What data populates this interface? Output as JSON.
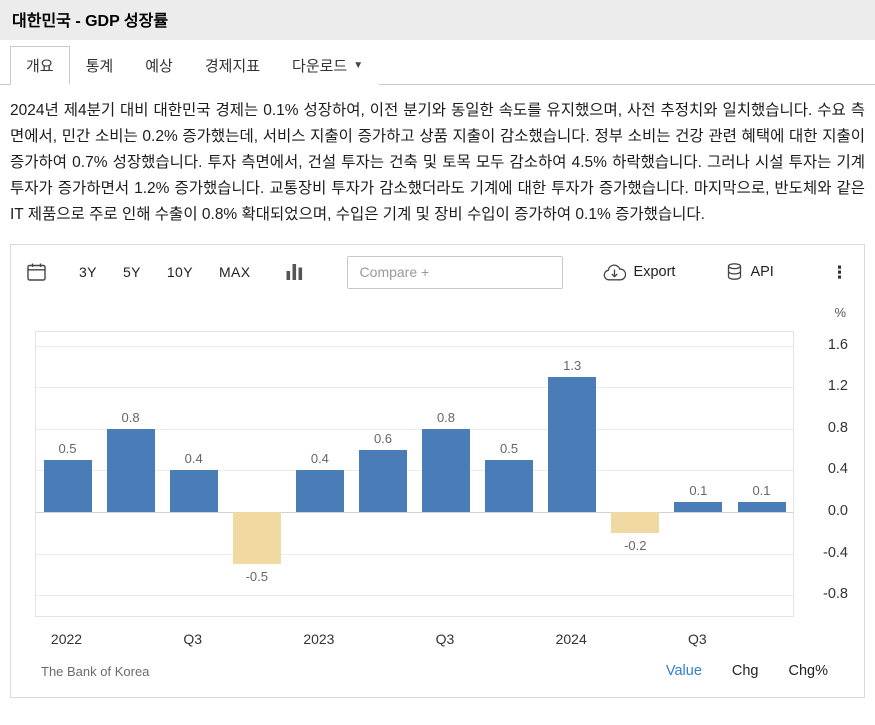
{
  "page": {
    "title": "대한민국 - GDP 성장률"
  },
  "tabs": [
    {
      "label": "개요",
      "active": true
    },
    {
      "label": "통계",
      "active": false
    },
    {
      "label": "예상",
      "active": false
    },
    {
      "label": "경제지표",
      "active": false
    },
    {
      "label": "다운로드",
      "active": false,
      "has_dropdown": true
    }
  ],
  "summary": "2024년 제4분기 대비 대한민국 경제는 0.1% 성장하여, 이전 분기와 동일한 속도를 유지했으며, 사전 추정치와 일치했습니다. 수요 측면에서, 민간 소비는 0.2% 증가했는데, 서비스 지출이 증가하고 상품 지출이 감소했습니다. 정부 소비는 건강 관련 혜택에 대한 지출이 증가하여 0.7% 성장했습니다. 투자 측면에서, 건설 투자는 건축 및 토목 모두 감소하여 4.5% 하락했습니다. 그러나 시설 투자는 기계 투자가 증가하면서 1.2% 증가했습니다. 교통장비 투자가 감소했더라도 기계에 대한 투자가 증가했습니다. 마지막으로, 반도체와 같은 IT 제품으로 주로 인해 수출이 0.8% 확대되었으며, 수입은 기계 및 장비 수입이 증가하여 0.1% 증가했습니다.",
  "toolbar": {
    "ranges": [
      "3Y",
      "5Y",
      "10Y",
      "MAX"
    ],
    "compare_placeholder": "Compare +",
    "export_label": "Export",
    "api_label": "API"
  },
  "chart_data": {
    "type": "bar",
    "unit": "%",
    "categories": [
      "2022 Q1",
      "2022 Q2",
      "2022 Q3",
      "2022 Q4",
      "2023 Q1",
      "2023 Q2",
      "2023 Q3",
      "2023 Q4",
      "2024 Q1",
      "2024 Q2",
      "2024 Q3",
      "2024 Q4"
    ],
    "values": [
      0.5,
      0.8,
      0.4,
      -0.5,
      0.4,
      0.6,
      0.8,
      0.5,
      1.3,
      -0.2,
      0.1,
      0.1
    ],
    "x_tick_labels": [
      "2022",
      "Q3",
      "2023",
      "Q3",
      "2024",
      "Q3"
    ],
    "y_ticks": [
      1.6,
      1.2,
      0.8,
      0.4,
      0.0,
      -0.4,
      -0.8
    ],
    "ylim": [
      -1.0,
      1.73
    ],
    "grid": true,
    "legend": "none",
    "positive_color": "#4a7cb8",
    "negative_color": "#f0d9a3",
    "source": "The Bank of Korea"
  },
  "footer": {
    "modes": [
      {
        "label": "Value",
        "active": true
      },
      {
        "label": "Chg",
        "active": false
      },
      {
        "label": "Chg%",
        "active": false
      }
    ]
  }
}
